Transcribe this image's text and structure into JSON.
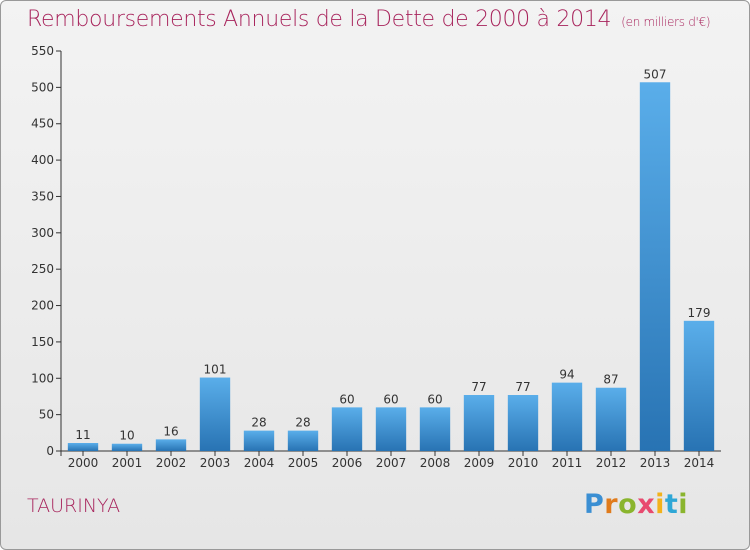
{
  "title": "Remboursements Annuels de la Dette de 2000 à 2014",
  "unit_note": "(en milliers d'€)",
  "commune": "TAURINYA",
  "logo": {
    "text": "Proxiti",
    "letter_colors": [
      "#3b8fd3",
      "#e07b1c",
      "#8ab52e",
      "#e84a6f",
      "#f2b21b",
      "#2fa7d6",
      "#8ab52e"
    ]
  },
  "chart_data": {
    "type": "bar",
    "categories": [
      "2000",
      "2001",
      "2002",
      "2003",
      "2004",
      "2005",
      "2006",
      "2007",
      "2008",
      "2009",
      "2010",
      "2011",
      "2012",
      "2013",
      "2014"
    ],
    "values": [
      11,
      10,
      16,
      101,
      28,
      28,
      60,
      60,
      60,
      77,
      77,
      94,
      87,
      507,
      179
    ],
    "ylim": [
      0,
      550
    ],
    "yticks": [
      0,
      50,
      100,
      150,
      200,
      250,
      300,
      350,
      400,
      450,
      500,
      550
    ],
    "grid": false,
    "bar_color": "#3a8fd6"
  }
}
